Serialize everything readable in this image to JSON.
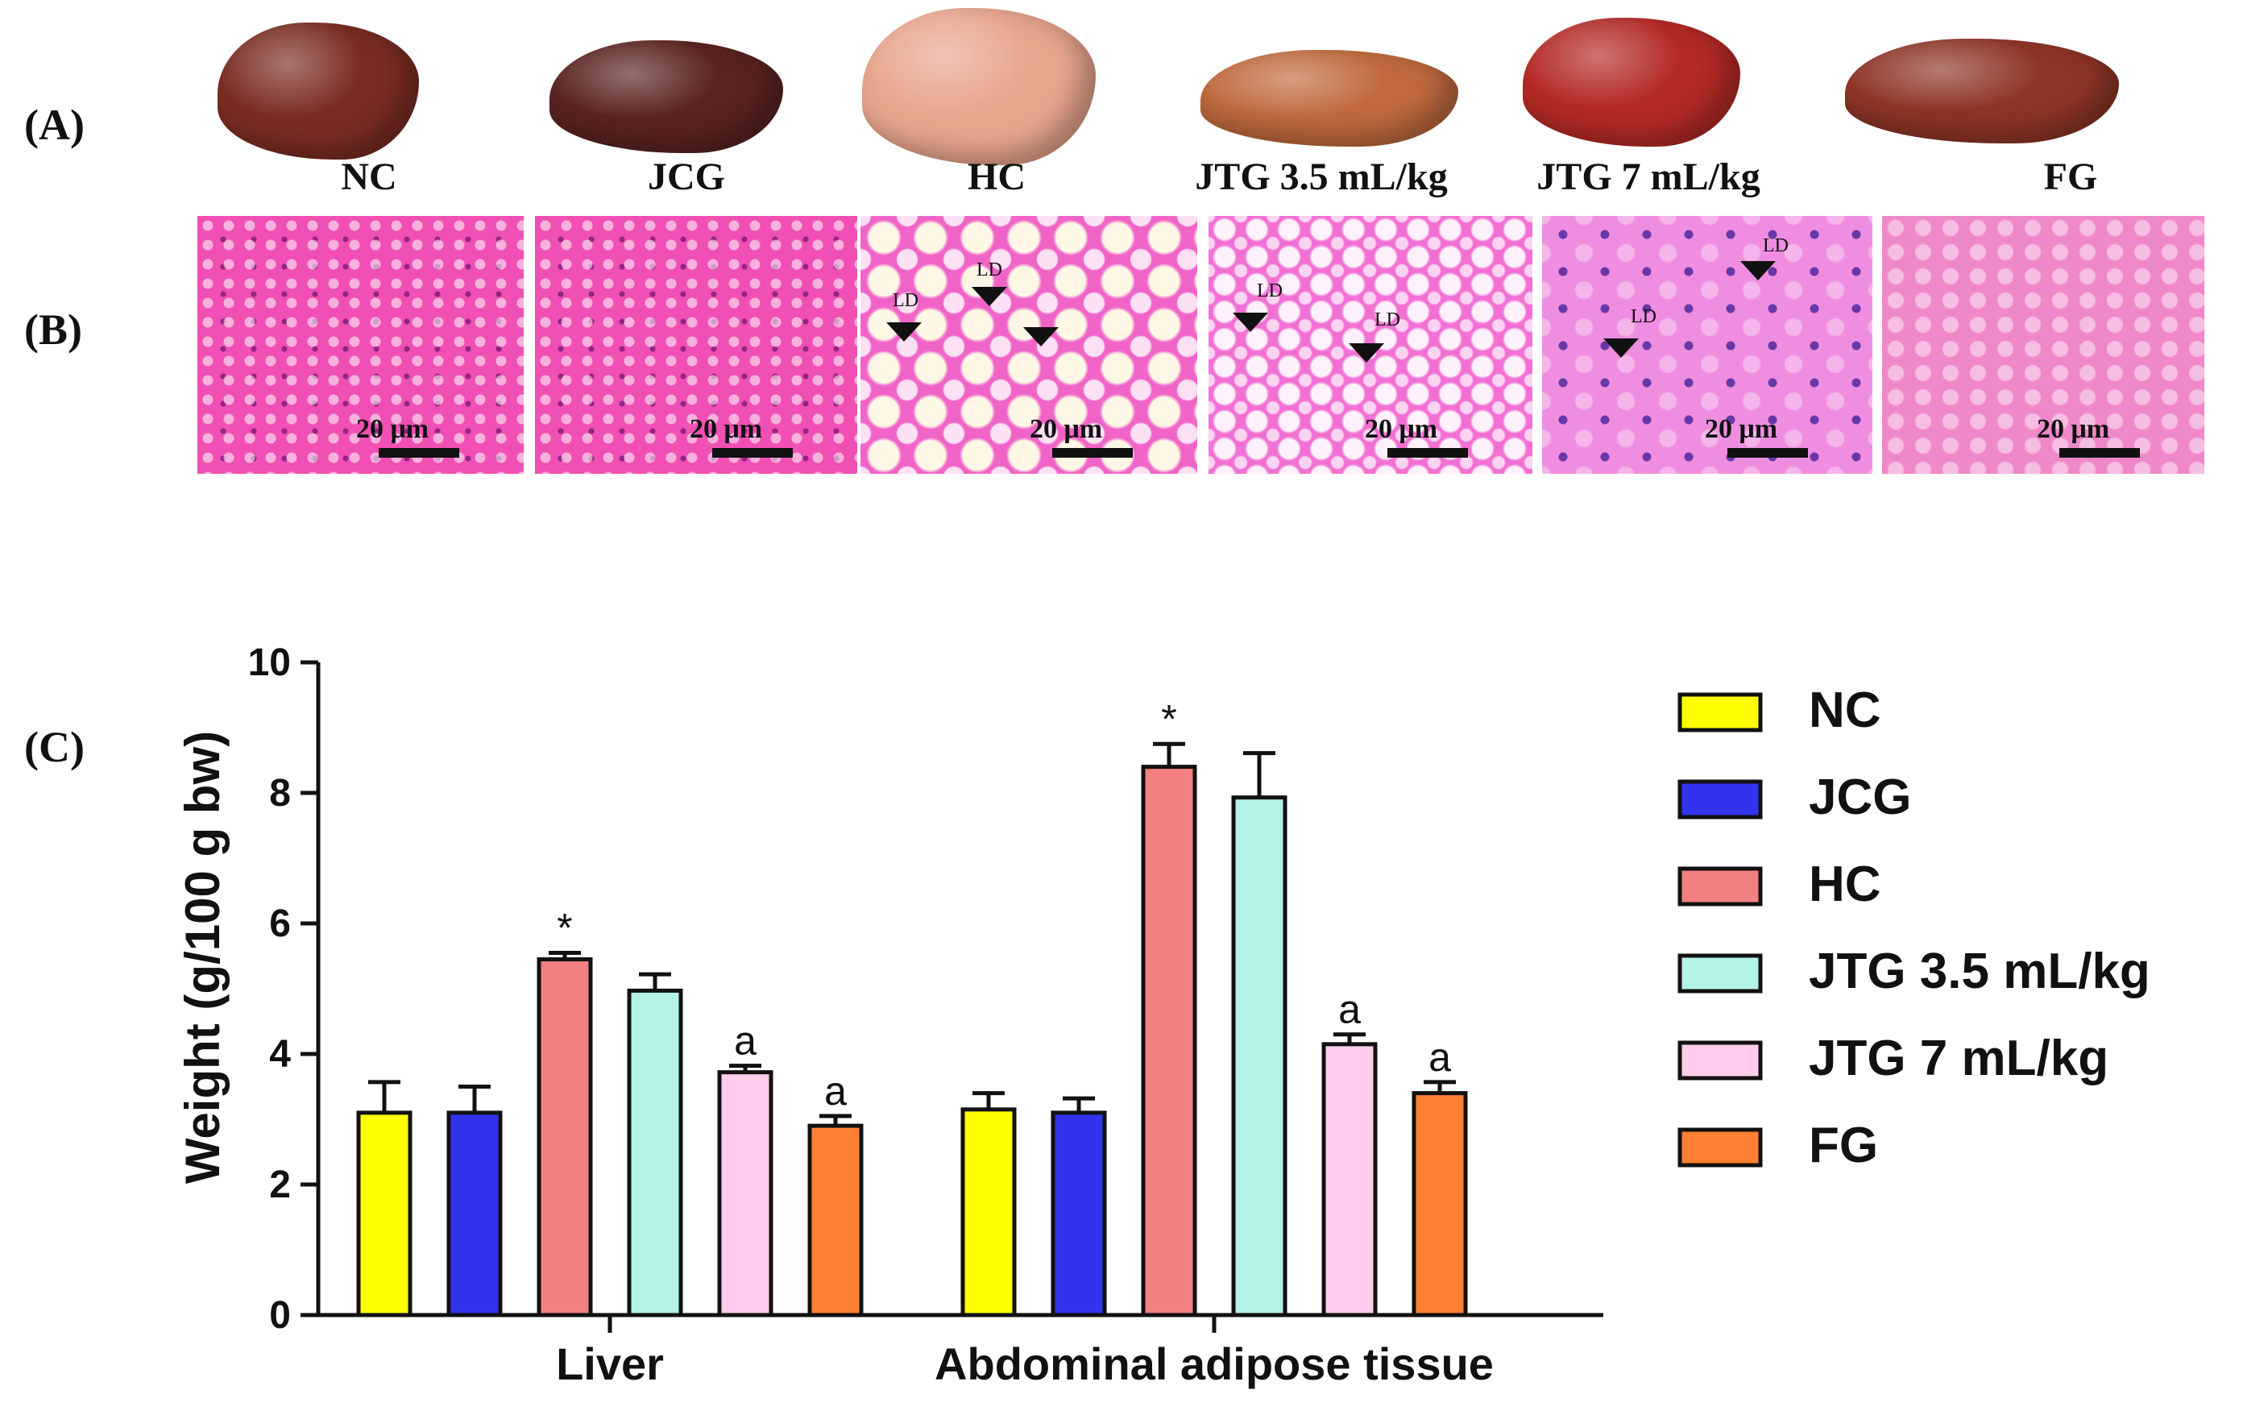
{
  "panels": {
    "a": "(A)",
    "b": "(B)",
    "c": "(C)"
  },
  "groups": [
    "NC",
    "JCG",
    "HC",
    "JTG 3.5 mL/kg",
    "JTG 7 mL/kg",
    "FG"
  ],
  "histology": {
    "scale_label": "20 μm",
    "ld_label": "LD",
    "colors": [
      "#f04fb4",
      "#f04fb4",
      "#f064c8",
      "#f270d4",
      "#ef8ee0",
      "#ef88c9"
    ]
  },
  "organ_colors": [
    "#7a2c22",
    "#5a2320",
    "#e7a58c",
    "#c06a3e",
    "#b42a25",
    "#8e3526"
  ],
  "chart_data": {
    "type": "bar",
    "categories": [
      "Liver",
      "Abdominal adipose tissue"
    ],
    "ylabel": "Weight (g/100 g bw)",
    "ylim": [
      0,
      10
    ],
    "yticks": [
      0,
      2,
      4,
      6,
      8,
      10
    ],
    "legend_position": "right",
    "series": [
      {
        "name": "NC",
        "color": "#ffff00",
        "values": [
          3.1,
          3.15
        ],
        "errors": [
          0.47,
          0.25
        ],
        "annotations": [
          "",
          ""
        ]
      },
      {
        "name": "JCG",
        "color": "#3333ee",
        "values": [
          3.1,
          3.1
        ],
        "errors": [
          0.4,
          0.22
        ],
        "annotations": [
          "",
          ""
        ]
      },
      {
        "name": "HC",
        "color": "#f28080",
        "values": [
          5.45,
          8.4
        ],
        "errors": [
          0.1,
          0.35
        ],
        "annotations": [
          "*",
          "*"
        ]
      },
      {
        "name": "JTG 3.5 mL/kg",
        "color": "#b3f2e6",
        "values": [
          4.97,
          7.93
        ],
        "errors": [
          0.25,
          0.68
        ],
        "annotations": [
          "",
          ""
        ]
      },
      {
        "name": "JTG 7 mL/kg",
        "color": "#ffcceb",
        "values": [
          3.72,
          4.15
        ],
        "errors": [
          0.1,
          0.15
        ],
        "annotations": [
          "a",
          "a"
        ]
      },
      {
        "name": "FG",
        "color": "#ff8033",
        "values": [
          2.9,
          3.4
        ],
        "errors": [
          0.15,
          0.17
        ],
        "annotations": [
          "a",
          "a"
        ]
      }
    ]
  }
}
